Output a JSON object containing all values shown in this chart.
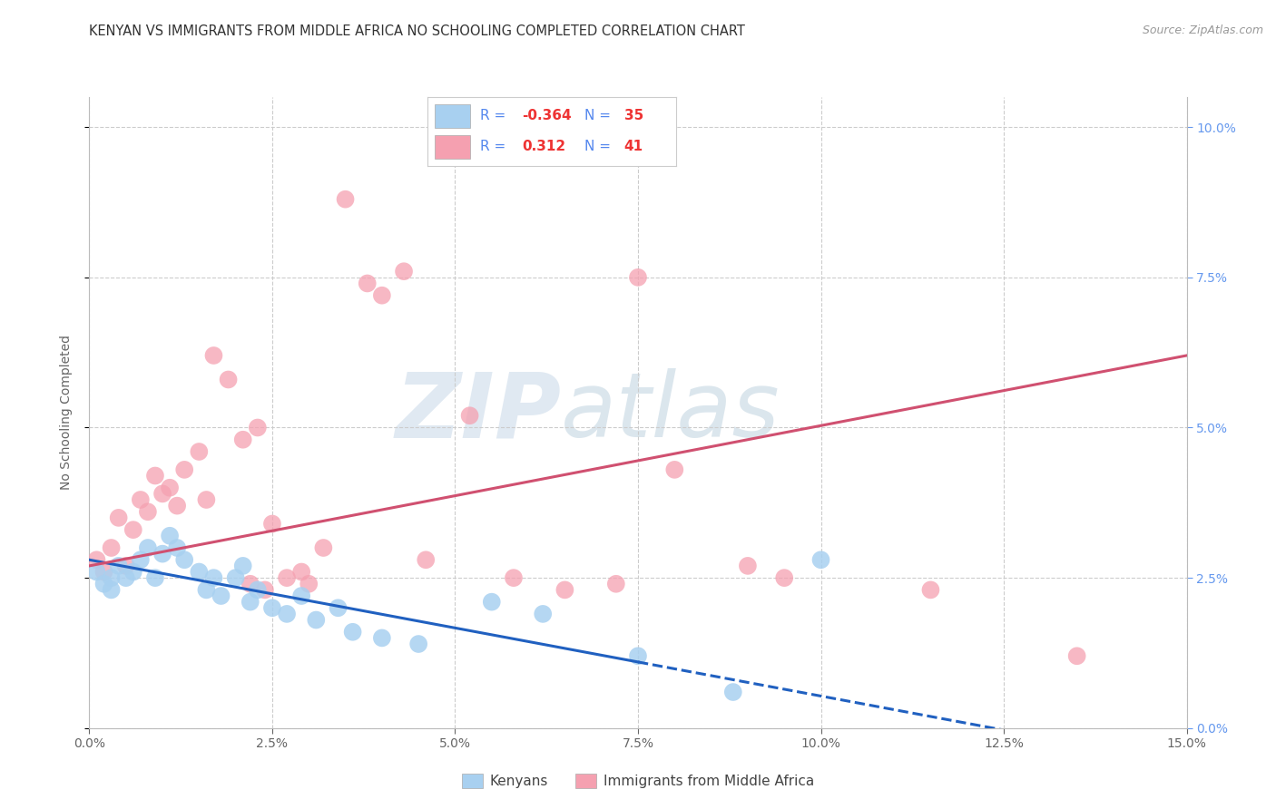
{
  "title": "KENYAN VS IMMIGRANTS FROM MIDDLE AFRICA NO SCHOOLING COMPLETED CORRELATION CHART",
  "source": "Source: ZipAtlas.com",
  "ylabel": "No Schooling Completed",
  "xlabel_vals": [
    0.0,
    2.5,
    5.0,
    7.5,
    10.0,
    12.5,
    15.0
  ],
  "ylabel_vals_right": [
    0.0,
    2.5,
    5.0,
    7.5,
    10.0
  ],
  "xlim": [
    0.0,
    15.0
  ],
  "ylim": [
    0.0,
    10.5
  ],
  "blue_R": -0.364,
  "blue_N": 35,
  "pink_R": 0.312,
  "pink_N": 41,
  "blue_color": "#a8d0f0",
  "pink_color": "#f5a0b0",
  "blue_line_color": "#2060c0",
  "pink_line_color": "#d05070",
  "watermark_zip": "ZIP",
  "watermark_atlas": "atlas",
  "blue_points_x": [
    0.1,
    0.2,
    0.3,
    0.3,
    0.4,
    0.5,
    0.6,
    0.7,
    0.8,
    0.9,
    1.0,
    1.1,
    1.2,
    1.3,
    1.5,
    1.6,
    1.7,
    1.8,
    2.0,
    2.1,
    2.2,
    2.3,
    2.5,
    2.7,
    2.9,
    3.1,
    3.4,
    3.6,
    4.0,
    4.5,
    5.5,
    6.2,
    7.5,
    8.8,
    10.0
  ],
  "blue_points_y": [
    2.6,
    2.4,
    2.5,
    2.3,
    2.7,
    2.5,
    2.6,
    2.8,
    3.0,
    2.5,
    2.9,
    3.2,
    3.0,
    2.8,
    2.6,
    2.3,
    2.5,
    2.2,
    2.5,
    2.7,
    2.1,
    2.3,
    2.0,
    1.9,
    2.2,
    1.8,
    2.0,
    1.6,
    1.5,
    1.4,
    2.1,
    1.9,
    1.2,
    0.6,
    2.8
  ],
  "pink_points_x": [
    0.1,
    0.2,
    0.3,
    0.4,
    0.5,
    0.6,
    0.7,
    0.8,
    0.9,
    1.0,
    1.1,
    1.2,
    1.3,
    1.5,
    1.6,
    1.7,
    1.9,
    2.1,
    2.3,
    2.5,
    2.7,
    2.9,
    3.0,
    3.2,
    3.5,
    3.8,
    4.0,
    4.3,
    4.6,
    5.2,
    5.8,
    6.5,
    7.2,
    7.5,
    8.0,
    9.0,
    9.5,
    11.5,
    13.5,
    2.2,
    2.4
  ],
  "pink_points_y": [
    2.8,
    2.6,
    3.0,
    3.5,
    2.7,
    3.3,
    3.8,
    3.6,
    4.2,
    3.9,
    4.0,
    3.7,
    4.3,
    4.6,
    3.8,
    6.2,
    5.8,
    4.8,
    5.0,
    3.4,
    2.5,
    2.6,
    2.4,
    3.0,
    8.8,
    7.4,
    7.2,
    7.6,
    2.8,
    5.2,
    2.5,
    2.3,
    2.4,
    7.5,
    4.3,
    2.7,
    2.5,
    2.3,
    1.2,
    2.4,
    2.3
  ],
  "legend_entries": [
    "Kenyans",
    "Immigrants from Middle Africa"
  ],
  "title_fontsize": 10.5,
  "tick_fontsize": 10,
  "source_fontsize": 9
}
